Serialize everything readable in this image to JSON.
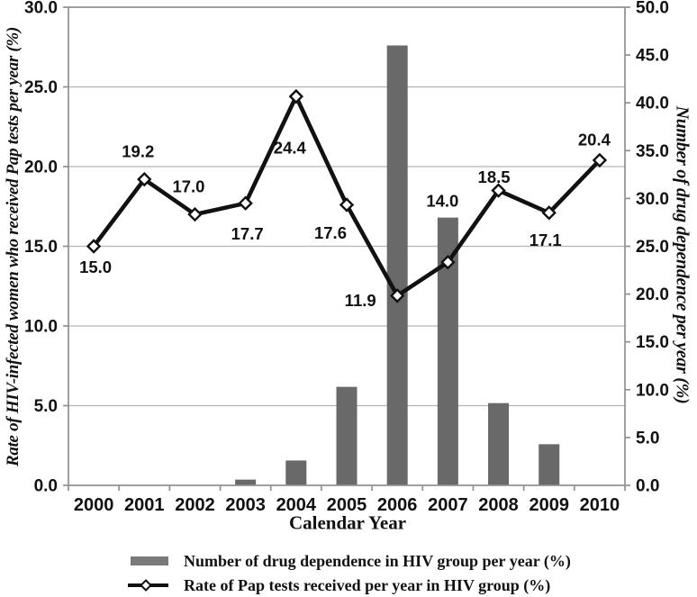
{
  "chart_data": {
    "type": "bar+line",
    "categories": [
      "2000",
      "2001",
      "2002",
      "2003",
      "2004",
      "2005",
      "2006",
      "2007",
      "2008",
      "2009",
      "2010"
    ],
    "series": [
      {
        "name": "Number of drug dependence in HIV group per year (%)",
        "type": "bar",
        "axis": "right",
        "values": [
          0,
          0,
          0,
          0.6,
          2.6,
          10.3,
          46.0,
          28.0,
          8.6,
          4.3,
          0
        ]
      },
      {
        "name": "Rate of Pap tests received per year in HIV group (%)",
        "type": "line",
        "axis": "left",
        "values": [
          15.0,
          19.2,
          17.0,
          17.7,
          24.4,
          17.6,
          11.9,
          14.0,
          18.5,
          17.1,
          20.4
        ],
        "data_labels": [
          "15.0",
          "19.2",
          "17.0",
          "17.7",
          "24.4",
          "17.6",
          "11.9",
          "14.0",
          "18.5",
          "17.1",
          "20.4"
        ],
        "label_offsets": [
          [
            2,
            23
          ],
          [
            -7,
            -31
          ],
          [
            -7,
            -31
          ],
          [
            2,
            34
          ],
          [
            -7,
            57
          ],
          [
            -18,
            31
          ],
          [
            -41,
            5
          ],
          [
            -6,
            -68
          ],
          [
            -5,
            -15
          ],
          [
            -4,
            30
          ],
          [
            -6,
            -23
          ]
        ]
      }
    ],
    "left_axis": {
      "title": "Rate of HIV-infected women who received Pap tests per year (%)",
      "min": 0,
      "max": 30,
      "step": 5,
      "ticks": [
        "0.0",
        "5.0",
        "10.0",
        "15.0",
        "20.0",
        "25.0",
        "30.0"
      ]
    },
    "right_axis": {
      "title": "Number of drug dependence per year (%)",
      "min": 0,
      "max": 50,
      "step": 5,
      "ticks": [
        "0.0",
        "5.0",
        "10.0",
        "15.0",
        "20.0",
        "25.0",
        "30.0",
        "35.0",
        "40.0",
        "45.0",
        "50.0"
      ]
    },
    "x_axis": {
      "title": "Calendar Year"
    },
    "grid": true,
    "legend_position": "bottom",
    "colors": {
      "bar": "#696969",
      "legend_swatch": "#7a7a7a",
      "line": "#111111",
      "marker_fill": "#ffffff",
      "grid": "#b3b3b3",
      "frame": "#909090",
      "text": "#111111"
    }
  }
}
